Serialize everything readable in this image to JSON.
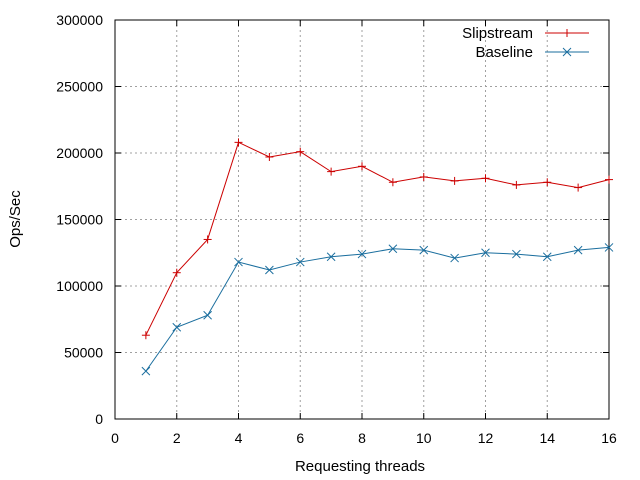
{
  "chart_data": {
    "type": "line",
    "title": "",
    "xlabel": "Requesting threads",
    "ylabel": "Ops/Sec",
    "xlim": [
      0,
      16
    ],
    "ylim": [
      0,
      300000
    ],
    "xticks": [
      0,
      2,
      4,
      6,
      8,
      10,
      12,
      14,
      16
    ],
    "yticks": [
      0,
      50000,
      100000,
      150000,
      200000,
      250000,
      300000
    ],
    "grid": true,
    "legend_position": "top-right",
    "x": [
      1,
      2,
      3,
      4,
      5,
      6,
      7,
      8,
      9,
      10,
      11,
      12,
      13,
      14,
      15,
      16
    ],
    "series": [
      {
        "name": "Slipstream",
        "color": "#cc0000",
        "marker": "plus",
        "values": [
          63000,
          110000,
          135000,
          208000,
          197000,
          201000,
          186000,
          190000,
          178000,
          182000,
          179000,
          181000,
          176000,
          178000,
          174000,
          180000
        ]
      },
      {
        "name": "Baseline",
        "color": "#1a6e9e",
        "marker": "cross",
        "values": [
          36000,
          69000,
          78000,
          118000,
          112000,
          118000,
          122000,
          124000,
          128000,
          127000,
          121000,
          125000,
          124000,
          122000,
          127000,
          129000
        ]
      }
    ]
  }
}
